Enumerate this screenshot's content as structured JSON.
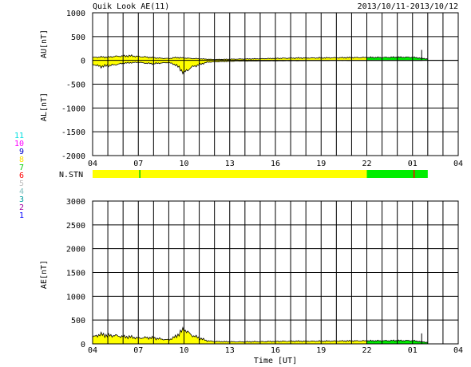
{
  "title": "Quik Look AE(11)",
  "date_range": "2013/10/11-2013/10/12",
  "stn_label": "N.STN",
  "xlabel": "Time [UT]",
  "colors": {
    "fill": "#ffff00",
    "green": "#00ee00",
    "red": "#ff0000",
    "line": "#000000"
  },
  "station_legend": [
    {
      "label": "11",
      "color": "#00e0e0"
    },
    {
      "label": "10",
      "color": "#ff00ff"
    },
    {
      "label": "9",
      "color": "#0000cc"
    },
    {
      "label": "8",
      "color": "#ffe000"
    },
    {
      "label": "7",
      "color": "#00cc00"
    },
    {
      "label": "6",
      "color": "#ff0000"
    },
    {
      "label": "5",
      "color": "#c0c0c0"
    },
    {
      "label": "4",
      "color": "#80c0c0"
    },
    {
      "label": "3",
      "color": "#00a0a0"
    },
    {
      "label": "2",
      "color": "#a000a0"
    },
    {
      "label": "1",
      "color": "#0000ff"
    }
  ],
  "x_ticks": [
    "04",
    "07",
    "10",
    "13",
    "16",
    "19",
    "22",
    "01",
    "04"
  ],
  "chart_data": [
    {
      "type": "area",
      "panel": "AU/AL",
      "ylabel_upper": "AU[nT]",
      "ylabel_lower": "AL[nT]",
      "x_unit": "hours after 04 UT",
      "xlim": [
        0,
        24
      ],
      "ylim": [
        -2000,
        1000
      ],
      "y_ticks": [
        "1000",
        "500",
        "0",
        "-500",
        "-1000",
        "-1500",
        "-2000"
      ],
      "grid": true,
      "data_end": 22,
      "au": {
        "x": [
          0,
          0.5,
          1,
          1.5,
          2,
          2.5,
          3,
          3.5,
          4,
          4.5,
          5,
          5.5,
          6,
          6.5,
          7,
          7.5,
          8,
          8.5,
          9,
          9.5,
          10,
          11,
          12,
          13,
          14,
          15,
          16,
          17,
          18,
          19,
          20,
          21,
          22
        ],
        "y": [
          60,
          70,
          65,
          85,
          90,
          95,
          80,
          70,
          55,
          45,
          40,
          60,
          50,
          40,
          35,
          25,
          20,
          22,
          25,
          28,
          30,
          35,
          42,
          48,
          50,
          52,
          55,
          58,
          60,
          62,
          65,
          65,
          30
        ]
      },
      "al": {
        "x": [
          0,
          0.5,
          1,
          1.5,
          2,
          2.5,
          3,
          3.5,
          4,
          4.5,
          5,
          5.5,
          6,
          6.5,
          7,
          7.5,
          8,
          8.5,
          9,
          9.5,
          10,
          11,
          12,
          13,
          14,
          15,
          16,
          17,
          18,
          19,
          20,
          21,
          22
        ],
        "y": [
          -80,
          -130,
          -110,
          -90,
          -60,
          -50,
          -40,
          -60,
          -70,
          -55,
          -45,
          -100,
          -260,
          -140,
          -90,
          -40,
          -30,
          -25,
          -20,
          -15,
          -15,
          -12,
          -10,
          -8,
          -6,
          -5,
          -4,
          -4,
          -3,
          -3,
          -3,
          -3,
          0
        ]
      }
    },
    {
      "type": "area",
      "panel": "AE",
      "ylabel": "AE[nT]",
      "x_unit": "hours after 04 UT",
      "xlim": [
        0,
        24
      ],
      "ylim": [
        0,
        3000
      ],
      "y_ticks": [
        "3000",
        "2500",
        "2000",
        "1500",
        "1000",
        "500",
        "0"
      ],
      "grid": true,
      "ae": {
        "x": [
          0,
          0.5,
          1,
          1.5,
          2,
          2.5,
          3,
          3.5,
          4,
          4.5,
          5,
          5.5,
          6,
          6.5,
          7,
          7.5,
          8,
          8.5,
          9,
          9.5,
          10,
          11,
          12,
          13,
          14,
          15,
          16,
          17,
          18,
          19,
          20,
          21,
          22
        ],
        "y": [
          140,
          200,
          175,
          175,
          150,
          145,
          120,
          130,
          125,
          100,
          85,
          160,
          310,
          180,
          125,
          65,
          50,
          47,
          45,
          43,
          45,
          47,
          52,
          56,
          56,
          57,
          59,
          62,
          63,
          65,
          68,
          68,
          30
        ]
      }
    }
  ],
  "stn_bar": {
    "segments": [
      {
        "from": 0,
        "to": 18,
        "color": "#ffff00"
      },
      {
        "from": 18,
        "to": 22,
        "color": "#00ee00"
      }
    ],
    "markers": [
      {
        "at": 3.1,
        "color": "#00cc00"
      },
      {
        "at": 21.1,
        "color": "#ff0000"
      }
    ]
  }
}
